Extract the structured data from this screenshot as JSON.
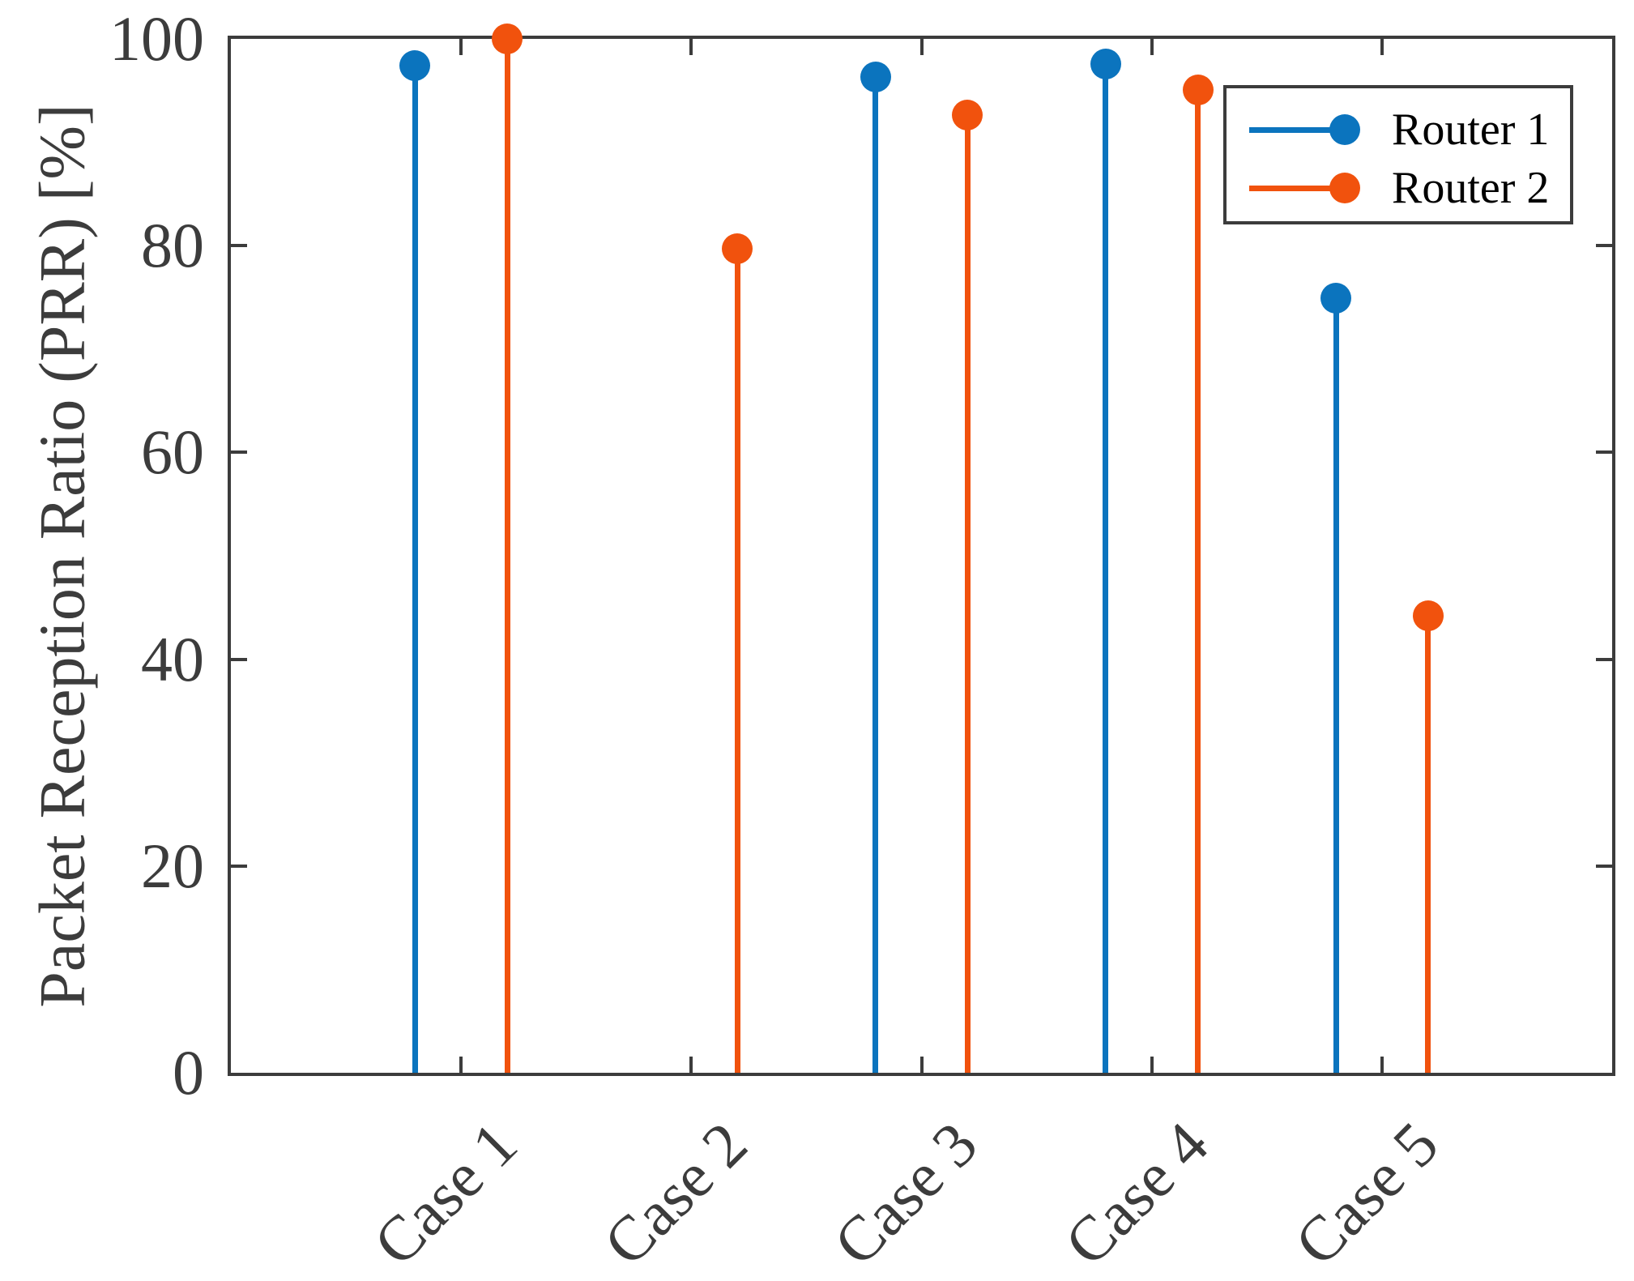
{
  "chart_data": {
    "type": "stem",
    "title": "",
    "ylabel": "Packet Reception Ratio (PRR) [%]",
    "xlabel": "",
    "categories": [
      "Case 1",
      "Case 2",
      "Case 3",
      "Case 4",
      "Case 5"
    ],
    "series": [
      {
        "name": "Router 1",
        "color": "#0B74BE",
        "values": [
          97.4,
          null,
          96.3,
          97.6,
          74.9
        ]
      },
      {
        "name": "Router 2",
        "color": "#F1520D",
        "values": [
          100,
          79.7,
          92.6,
          95.1,
          44.2
        ]
      }
    ],
    "ylim": [
      0,
      100
    ],
    "yticks": [
      0,
      20,
      40,
      60,
      80,
      100
    ],
    "ytick_labels": [
      "0",
      "20",
      "40",
      "60",
      "80",
      "100"
    ],
    "xtick_angle": 45,
    "grid": false,
    "box": true,
    "legend_position": "top-right",
    "marker": "filled-circle",
    "axis_color": "#3C3C3C"
  }
}
